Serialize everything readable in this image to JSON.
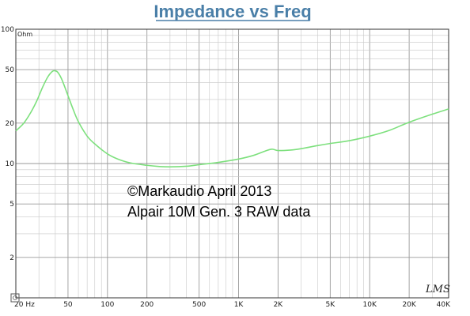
{
  "chart_data": {
    "type": "line",
    "title": "Impedance vs Freq",
    "yunit": "Ohm",
    "xscale": "log",
    "yscale": "log",
    "xlim": [
      20,
      40000
    ],
    "ylim": [
      1,
      100
    ],
    "grid": true,
    "x_tick_labels": [
      {
        "value": 20,
        "label": "20 Hz"
      },
      {
        "value": 50,
        "label": "50"
      },
      {
        "value": 100,
        "label": "100"
      },
      {
        "value": 200,
        "label": "200"
      },
      {
        "value": 500,
        "label": "500"
      },
      {
        "value": 1000,
        "label": "1K"
      },
      {
        "value": 2000,
        "label": "2K"
      },
      {
        "value": 5000,
        "label": "5K"
      },
      {
        "value": 10000,
        "label": "10K"
      },
      {
        "value": 20000,
        "label": "20K"
      },
      {
        "value": 40000,
        "label": "40K"
      }
    ],
    "y_tick_labels": [
      {
        "value": 100,
        "label": "100"
      },
      {
        "value": 50,
        "label": "50"
      },
      {
        "value": 20,
        "label": "20"
      },
      {
        "value": 10,
        "label": "10"
      },
      {
        "value": 5,
        "label": "5"
      },
      {
        "value": 2,
        "label": "2"
      }
    ],
    "annotations": [
      "©Markaudio April 2013",
      "Alpair 10M Gen. 3 RAW data"
    ],
    "watermark": "LMS",
    "series": [
      {
        "color": "#7de07d",
        "points": [
          [
            20,
            17.5
          ],
          [
            23,
            20
          ],
          [
            26,
            24
          ],
          [
            29,
            29.5
          ],
          [
            32,
            37
          ],
          [
            35,
            44
          ],
          [
            38,
            48.5
          ],
          [
            40,
            49
          ],
          [
            42,
            47.5
          ],
          [
            45,
            42
          ],
          [
            50,
            32
          ],
          [
            55,
            25
          ],
          [
            60,
            20.5
          ],
          [
            70,
            16
          ],
          [
            80,
            14
          ],
          [
            100,
            11.8
          ],
          [
            120,
            10.8
          ],
          [
            150,
            10.1
          ],
          [
            200,
            9.7
          ],
          [
            250,
            9.5
          ],
          [
            300,
            9.45
          ],
          [
            400,
            9.55
          ],
          [
            500,
            9.8
          ],
          [
            700,
            10.2
          ],
          [
            1000,
            10.8
          ],
          [
            1300,
            11.5
          ],
          [
            1600,
            12.4
          ],
          [
            1800,
            12.8
          ],
          [
            2000,
            12.5
          ],
          [
            2500,
            12.6
          ],
          [
            3000,
            12.9
          ],
          [
            4000,
            13.6
          ],
          [
            5000,
            14.1
          ],
          [
            7000,
            14.8
          ],
          [
            10000,
            16.0
          ],
          [
            14000,
            17.6
          ],
          [
            20000,
            20.3
          ],
          [
            30000,
            23.3
          ],
          [
            40000,
            25.5
          ]
        ]
      }
    ]
  }
}
